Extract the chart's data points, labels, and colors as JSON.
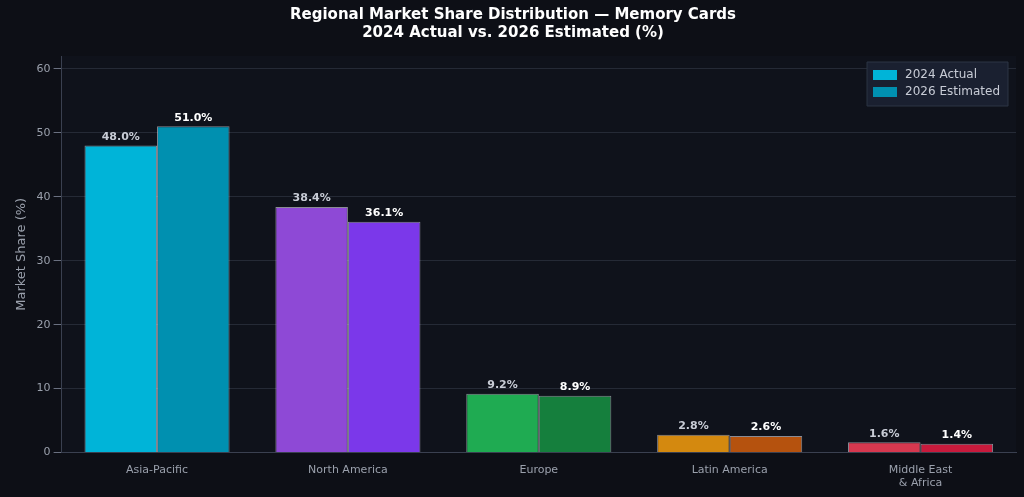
{
  "chart_data": {
    "type": "bar",
    "title": "Regional Market Share Distribution — Memory Cards",
    "subtitle": "2024 Actual vs. 2026 Estimated (%)",
    "ylabel": "Market Share (%)",
    "categories": [
      "Asia-Pacific",
      "North America",
      "Europe",
      "Latin America",
      "Middle East\n& Africa"
    ],
    "series": [
      {
        "name": "2024 Actual",
        "color": "#00b4d8",
        "colors": [
          "#00b4d8",
          "#8e49d6",
          "#1fab52",
          "#d4890f",
          "#d6384f"
        ],
        "values": [
          48.0,
          38.4,
          9.2,
          2.8,
          1.6
        ],
        "value_labels": [
          "48.0%",
          "38.4%",
          "9.2%",
          "2.8%",
          "1.6%"
        ]
      },
      {
        "name": "2026 Estimated",
        "color": "#0090b0",
        "colors": [
          "#0090b0",
          "#7b38ea",
          "#157f3d",
          "#b5520e",
          "#c81a3c"
        ],
        "values": [
          51.0,
          36.1,
          8.9,
          2.6,
          1.4
        ],
        "value_labels": [
          "51.0%",
          "36.1%",
          "8.9%",
          "2.6%",
          "1.4%"
        ]
      }
    ],
    "ylim": [
      0,
      62
    ],
    "yticks": [
      0,
      10,
      20,
      30,
      40,
      50,
      60
    ],
    "grid": "y",
    "legend": "top right"
  }
}
